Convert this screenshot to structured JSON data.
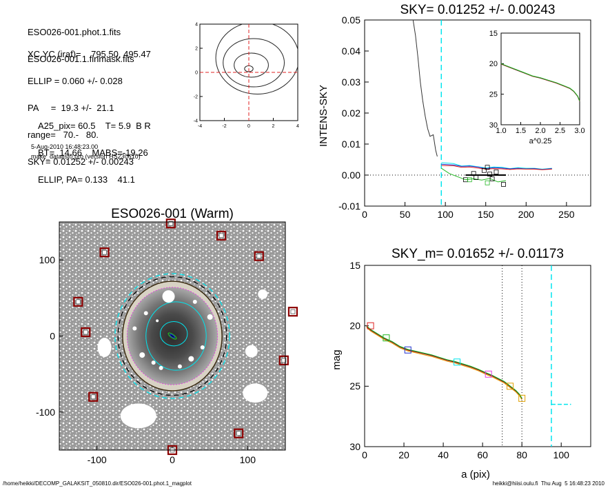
{
  "header": {
    "file_lines": [
      "ESO026-001.phot.1.fits",
      "ESO026-001.1.finmask.fits"
    ],
    "param_lines": [
      "XC,YC (iraf)=    795.50, 495.47",
      "ELLIP = 0.060 +/- 0.028",
      "PA     =  19.3 +/-  21.1",
      "range=   70.-   80.",
      "SKY= 0.01252 +/- 0.00243"
    ],
    "extra_lines": [
      "A25_pix= 60.5    T= 5.9  B R",
      "BT=  14.66    MABS=-19.26",
      "ELLIP, PA= 0.133    41.1"
    ],
    "date": "5-Aug-2010 16:48:23.00",
    "program": "make_datalist0.pro (version HS230610)"
  },
  "footer": {
    "path": "/home/heikki/DECOMP_GALAKSIT_050810.dir/ESO026-001.phot.1_magplot",
    "user_stamp": "heikki@hiisi.oulu.fi  Thu Aug  5 16:48:23 2010"
  },
  "colors": {
    "cyan": "#00e5ee",
    "green": "#22b822",
    "red": "#e02020",
    "blue": "#2030d0",
    "magenta": "#e040e0",
    "orange": "#e0a000",
    "dark_red": "#8b0000",
    "mid_gray": "#b0b0b0"
  },
  "chart_data": [
    {
      "id": "contour",
      "type": "contour",
      "x_ticks": [
        "-4",
        "-2",
        "0",
        "2",
        "4"
      ],
      "y_ticks": [
        "4",
        "2",
        "0",
        "-2",
        "-4"
      ],
      "xlim": [
        -4,
        4
      ],
      "ylim": [
        -4,
        4
      ],
      "levels": [
        {
          "cx": 0.0,
          "cy": 0.3,
          "rx": 0.35,
          "ry": 0.25
        },
        {
          "cx": 0.2,
          "cy": 0.6,
          "rx": 1.4,
          "ry": 1.0
        },
        {
          "cx": 0.4,
          "cy": 0.8,
          "rx": 2.5,
          "ry": 2.0
        },
        {
          "cx": 0.7,
          "cy": 1.2,
          "rx": 3.4,
          "ry": 3.0
        }
      ]
    },
    {
      "id": "sky",
      "type": "line",
      "title": "SKY= 0.01252 +/- 0.00243",
      "ylabel": "INTENS-SKY",
      "xlim": [
        0,
        280
      ],
      "ylim": [
        -0.01,
        0.05
      ],
      "x_ticks": [
        "0",
        "50",
        "100",
        "150",
        "200",
        "250"
      ],
      "y_ticks": [
        "0.05",
        "0.04",
        "0.03",
        "0.02",
        "0.01",
        "0.00",
        "-0.01"
      ],
      "series": [
        {
          "color": "dark",
          "x": [
            60,
            63,
            66,
            69,
            72,
            75,
            78,
            81,
            85,
            88,
            90
          ],
          "y": [
            0.05,
            0.045,
            0.038,
            0.03,
            0.024,
            0.019,
            0.015,
            0.0125,
            0.013,
            0.008,
            0.006
          ]
        },
        {
          "color": "cyan",
          "x": [
            95,
            110,
            120,
            130,
            140,
            150,
            160,
            170,
            180,
            190,
            200,
            210,
            220,
            232
          ],
          "y": [
            0.004,
            0.0037,
            0.0029,
            0.0031,
            0.0027,
            0.0023,
            0.0026,
            0.0025,
            0.0021,
            0.0024,
            0.0022,
            0.0022,
            0.0019,
            0.0022
          ]
        },
        {
          "color": "blue",
          "x": [
            95,
            110,
            120,
            130,
            140,
            150,
            160,
            170,
            180,
            190,
            200,
            210,
            220,
            232
          ],
          "y": [
            0.0035,
            0.0033,
            0.0028,
            0.0029,
            0.0026,
            0.0021,
            0.0024,
            0.0023,
            0.002,
            0.0022,
            0.002,
            0.0021,
            0.0018,
            0.0021
          ]
        },
        {
          "color": "red",
          "x": [
            95,
            110,
            120,
            130,
            140,
            150,
            160,
            170,
            180,
            190,
            200,
            210,
            220,
            232
          ],
          "y": [
            0.0031,
            0.003,
            0.0025,
            0.0026,
            0.0023,
            0.0019,
            0.0021,
            0.002,
            0.0018,
            0.002,
            0.0019,
            0.0019,
            0.0017,
            0.0019
          ]
        },
        {
          "color": "green",
          "x": [
            95,
            105,
            115,
            125,
            135,
            145,
            155,
            165,
            175
          ],
          "y": [
            0.0022,
            0.0005,
            -0.0005,
            -0.0015,
            -0.0012,
            -0.0016,
            -0.0011,
            -0.0022,
            -0.0018
          ]
        }
      ],
      "black_points": [
        {
          "x": 125,
          "y": -0.0015
        },
        {
          "x": 135,
          "y": 0.0005
        },
        {
          "x": 138,
          "y": -0.0008
        },
        {
          "x": 148,
          "y": 0.0015
        },
        {
          "x": 152,
          "y": 0.0025
        },
        {
          "x": 155,
          "y": 0.0003
        },
        {
          "x": 158,
          "y": -0.0012
        },
        {
          "x": 163,
          "y": 0.001
        },
        {
          "x": 172,
          "y": -0.003
        }
      ],
      "green_points": [
        {
          "x": 130,
          "y": -0.0015
        },
        {
          "x": 152,
          "y": -0.0025
        }
      ],
      "sky_bar": {
        "x0": 125,
        "x1": 175,
        "y": 0.0
      },
      "vline_x": 95,
      "inset": {
        "xlabel": "a^0.25",
        "x_ticks": [
          "1.0",
          "1.5",
          "2.0",
          "2.5",
          "3.0"
        ],
        "y_ticks": [
          "15",
          "20",
          "25",
          "30"
        ],
        "xlim": [
          1.0,
          3.0
        ],
        "ylim": [
          15,
          30
        ],
        "x": [
          1.0,
          1.2,
          1.4,
          1.6,
          1.8,
          2.0,
          2.2,
          2.4,
          2.6,
          2.75,
          2.85,
          2.95,
          3.0
        ],
        "y": [
          20.0,
          20.5,
          21.0,
          21.5,
          22.0,
          22.3,
          22.7,
          23.1,
          23.6,
          24.0,
          24.5,
          25.3,
          26.1
        ]
      }
    },
    {
      "id": "image",
      "type": "image",
      "title": "ESO026-001 (Warm)",
      "xlim": [
        -150,
        150
      ],
      "ylim": [
        -150,
        150
      ],
      "x_ticks": [
        "-100",
        "0",
        "100"
      ],
      "y_ticks": [
        "100",
        "0",
        "-100"
      ],
      "stars": [
        {
          "x": -2,
          "y": 148
        },
        {
          "x": 65,
          "y": 132
        },
        {
          "x": -90,
          "y": 110
        },
        {
          "x": 115,
          "y": 105
        },
        {
          "x": -125,
          "y": 45
        },
        {
          "x": 160,
          "y": 32
        },
        {
          "x": -115,
          "y": 5
        },
        {
          "x": 148,
          "y": -32
        },
        {
          "x": -105,
          "y": -80
        },
        {
          "x": 88,
          "y": -128
        },
        {
          "x": 0,
          "y": -150
        }
      ]
    },
    {
      "id": "profile",
      "type": "line",
      "title": "SKY_m=  0.01652 +/- 0.01173",
      "xlabel": "a (pix)",
      "ylabel": "mag",
      "xlim": [
        0,
        115
      ],
      "ylim": [
        15,
        30
      ],
      "x_ticks": [
        "0",
        "20",
        "40",
        "60",
        "80",
        "100"
      ],
      "y_ticks": [
        "15",
        "20",
        "25",
        "30"
      ],
      "x": [
        1,
        3,
        6,
        10,
        14,
        18,
        22,
        26,
        30,
        34,
        38,
        42,
        46,
        50,
        54,
        58,
        62,
        65,
        68,
        71,
        73,
        75,
        77,
        79,
        80
      ],
      "y": [
        20.0,
        20.3,
        20.6,
        21.0,
        21.3,
        21.7,
        21.95,
        22.1,
        22.25,
        22.4,
        22.6,
        22.8,
        22.95,
        23.15,
        23.35,
        23.6,
        23.9,
        24.1,
        24.35,
        24.6,
        24.85,
        25.1,
        25.35,
        25.7,
        26.0
      ],
      "boxes": [
        {
          "x": 3,
          "y": 20.0,
          "color": "red"
        },
        {
          "x": 11,
          "y": 21.0,
          "color": "green"
        },
        {
          "x": 22,
          "y": 22.0,
          "color": "blue"
        },
        {
          "x": 47,
          "y": 23.0,
          "color": "cyan"
        },
        {
          "x": 63,
          "y": 24.0,
          "color": "magenta"
        },
        {
          "x": 74,
          "y": 25.0,
          "color": "orange"
        },
        {
          "x": 80,
          "y": 26.0,
          "color": "orange"
        }
      ],
      "vlines_dotted": [
        70,
        80
      ],
      "vline_cyan": 95,
      "sky_segment": {
        "x0": 95,
        "x1": 105,
        "y": 26.5
      }
    }
  ]
}
